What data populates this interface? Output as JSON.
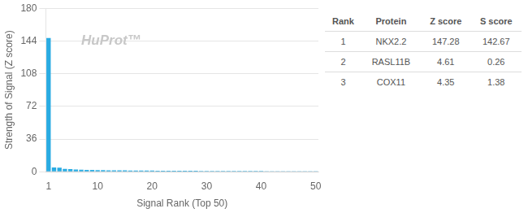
{
  "chart_data": {
    "type": "bar",
    "x": [
      1,
      2,
      3,
      4,
      5,
      6,
      7,
      8,
      9,
      10,
      11,
      12,
      13,
      14,
      15,
      16,
      17,
      18,
      19,
      20,
      21,
      22,
      23,
      24,
      25,
      26,
      27,
      28,
      29,
      30,
      31,
      32,
      33,
      34,
      35,
      36,
      37,
      38,
      39,
      40,
      41,
      42,
      43,
      44,
      45,
      46,
      47,
      48,
      49,
      50
    ],
    "values": [
      147.28,
      4.61,
      4.35,
      3.2,
      2.8,
      2.5,
      2.2,
      2.0,
      1.9,
      1.8,
      1.7,
      1.6,
      1.55,
      1.5,
      1.45,
      1.4,
      1.35,
      1.3,
      1.25,
      1.2,
      1.15,
      1.1,
      1.08,
      1.06,
      1.04,
      1.02,
      1.0,
      0.98,
      0.96,
      0.94,
      0.92,
      0.9,
      0.88,
      0.86,
      0.84,
      0.82,
      0.8,
      0.78,
      0.76,
      0.74,
      0.72,
      0.7,
      0.68,
      0.66,
      0.64,
      0.62,
      0.6,
      0.58,
      0.56,
      0.54
    ],
    "color": "#29abe2",
    "x_label": "Signal Rank (Top 50)",
    "y_label": "Strength of Signal (Z score)",
    "xlim": [
      0.5,
      50.5
    ],
    "xticks": [
      1,
      10,
      20,
      30,
      40,
      50
    ],
    "ylim": [
      0,
      180
    ],
    "yticks": [
      0,
      36,
      72,
      108,
      144,
      180
    ],
    "grid": "y",
    "annotations": [
      "HuProt™"
    ],
    "table": {
      "columns": [
        "Rank",
        "Protein",
        "Z score",
        "S score"
      ],
      "rows": [
        [
          1,
          "NKX2.2",
          147.28,
          142.67
        ],
        [
          2,
          "RASL11B",
          4.61,
          0.26
        ],
        [
          3,
          "COX11",
          4.35,
          1.38
        ]
      ]
    }
  }
}
